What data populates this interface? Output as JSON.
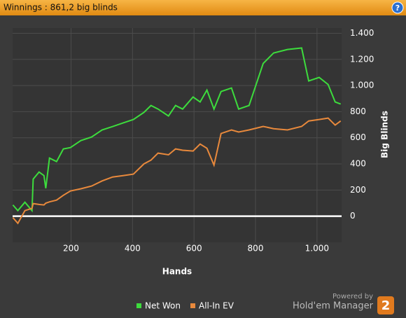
{
  "chart_data": {
    "type": "line",
    "title": "Winnings : 861,2 big blinds",
    "help": "?",
    "x_label": "Hands",
    "y_label": "Big Blinds",
    "x": [
      11,
      27,
      50,
      73,
      77,
      96,
      112,
      118,
      130,
      153,
      175,
      198,
      232,
      267,
      301,
      335,
      369,
      403,
      437,
      460,
      483,
      517,
      540,
      563,
      597,
      620,
      642,
      665,
      688,
      722,
      745,
      779,
      825,
      859,
      904,
      950,
      973,
      1007,
      1036,
      1059,
      1077
    ],
    "series": [
      {
        "name": "Net Won",
        "color": "#3ddc3d",
        "values": [
          86,
          43,
          107,
          43,
          284,
          338,
          311,
          214,
          445,
          418,
          515,
          525,
          579,
          606,
          660,
          686,
          713,
          740,
          794,
          847,
          820,
          767,
          847,
          820,
          912,
          874,
          965,
          820,
          954,
          981,
          820,
          847,
          1169,
          1249,
          1276,
          1287,
          1035,
          1062,
          1008,
          874,
          858
        ]
      },
      {
        "name": "All-In EV",
        "color": "#e8893c",
        "values": [
          -11,
          -54,
          43,
          60,
          97,
          90,
          86,
          100,
          110,
          123,
          160,
          193,
          210,
          231,
          270,
          300,
          310,
          322,
          400,
          429,
          483,
          470,
          515,
          505,
          499,
          552,
          520,
          391,
          633,
          660,
          644,
          660,
          687,
          670,
          660,
          687,
          729,
          740,
          751,
          697,
          729
        ]
      }
    ],
    "xlim": [
      10,
      1080
    ],
    "ylim": [
      -200,
      1440
    ],
    "xticks": [
      200,
      400,
      600,
      800,
      {
        "value": 1000,
        "label": "1.000"
      }
    ],
    "yticks": [
      0,
      200,
      400,
      600,
      800,
      {
        "value": 1000,
        "label": "1.000"
      },
      {
        "value": 1200,
        "label": "1.200"
      },
      {
        "value": 1400,
        "label": "1.400"
      }
    ],
    "grid": true,
    "zero_line": true,
    "legend": "bottom",
    "powered_by": "Powered by",
    "brand": "Hold'em Manager",
    "brand_version": "2"
  }
}
